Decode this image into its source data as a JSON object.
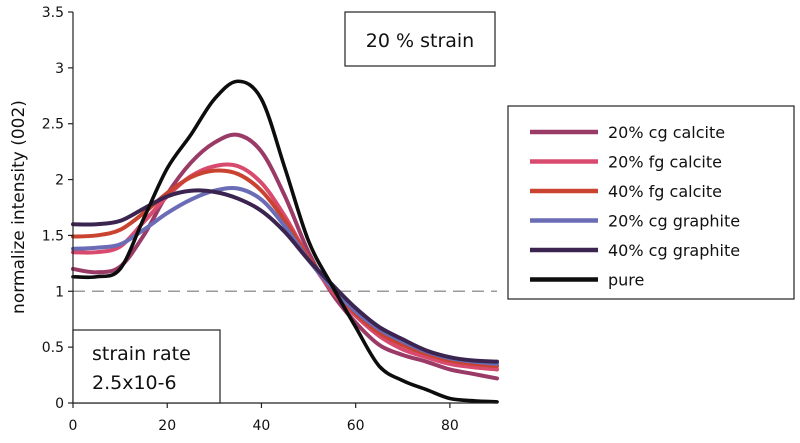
{
  "chart_data": {
    "type": "line",
    "title": "",
    "xlabel": "",
    "ylabel": "normalize intensity (002)",
    "xlim": [
      0,
      90
    ],
    "ylim": [
      0,
      3.5
    ],
    "x_ticks": [
      "0",
      "20",
      "40",
      "60",
      "80"
    ],
    "y_ticks": [
      "0",
      "0.5",
      "1",
      "1.5",
      "2",
      "2.5",
      "3",
      "3.5"
    ],
    "reference_line": {
      "y": 1,
      "style": "dashed",
      "color": "#9a9a9a"
    },
    "annotations": {
      "strain": "20 % strain",
      "strain_rate_line1": "strain rate",
      "strain_rate_line2": "2.5x10-6"
    },
    "legend_position": "right",
    "series": [
      {
        "name": "20% cg calcite",
        "color": "#9a3a66",
        "x": [
          0,
          5,
          10,
          15,
          20,
          25,
          30,
          35,
          40,
          45,
          50,
          55,
          60,
          65,
          70,
          75,
          80,
          85,
          90
        ],
        "y": [
          1.2,
          1.17,
          1.22,
          1.5,
          1.87,
          2.15,
          2.33,
          2.4,
          2.25,
          1.85,
          1.35,
          0.98,
          0.72,
          0.52,
          0.43,
          0.37,
          0.3,
          0.26,
          0.22
        ]
      },
      {
        "name": "20% fg calcite",
        "color": "#d84a6e",
        "x": [
          0,
          5,
          10,
          15,
          20,
          25,
          30,
          35,
          40,
          45,
          50,
          55,
          60,
          65,
          70,
          75,
          80,
          85,
          90
        ],
        "y": [
          1.35,
          1.35,
          1.4,
          1.62,
          1.85,
          2.03,
          2.12,
          2.12,
          1.97,
          1.67,
          1.3,
          1.0,
          0.78,
          0.6,
          0.48,
          0.41,
          0.35,
          0.32,
          0.3
        ]
      },
      {
        "name": "40% fg calcite",
        "color": "#c94330",
        "x": [
          0,
          5,
          10,
          15,
          20,
          25,
          30,
          35,
          40,
          45,
          50,
          55,
          60,
          65,
          70,
          75,
          80,
          85,
          90
        ],
        "y": [
          1.49,
          1.5,
          1.55,
          1.7,
          1.88,
          2.02,
          2.08,
          2.05,
          1.9,
          1.63,
          1.3,
          1.02,
          0.8,
          0.63,
          0.52,
          0.44,
          0.38,
          0.35,
          0.33
        ]
      },
      {
        "name": "20% cg graphite",
        "color": "#6a6cb6",
        "x": [
          0,
          5,
          10,
          15,
          20,
          25,
          30,
          35,
          40,
          45,
          50,
          55,
          60,
          65,
          70,
          75,
          80,
          85,
          90
        ],
        "y": [
          1.38,
          1.39,
          1.42,
          1.55,
          1.7,
          1.82,
          1.9,
          1.92,
          1.82,
          1.58,
          1.28,
          1.03,
          0.82,
          0.66,
          0.55,
          0.46,
          0.4,
          0.37,
          0.35
        ]
      },
      {
        "name": "40% cg graphite",
        "color": "#3b2550",
        "x": [
          0,
          5,
          10,
          15,
          20,
          25,
          30,
          35,
          40,
          45,
          50,
          55,
          60,
          65,
          70,
          75,
          80,
          85,
          90
        ],
        "y": [
          1.6,
          1.6,
          1.63,
          1.74,
          1.85,
          1.9,
          1.89,
          1.83,
          1.72,
          1.53,
          1.28,
          1.06,
          0.85,
          0.68,
          0.57,
          0.47,
          0.41,
          0.38,
          0.37
        ]
      },
      {
        "name": "pure",
        "color": "#0d0d0d",
        "x": [
          0,
          5,
          10,
          15,
          20,
          25,
          30,
          35,
          40,
          45,
          50,
          55,
          60,
          65,
          70,
          75,
          80,
          85,
          90
        ],
        "y": [
          1.13,
          1.13,
          1.2,
          1.65,
          2.1,
          2.4,
          2.72,
          2.88,
          2.72,
          2.1,
          1.45,
          1.05,
          0.68,
          0.33,
          0.2,
          0.12,
          0.04,
          0.02,
          0.01
        ]
      }
    ]
  }
}
